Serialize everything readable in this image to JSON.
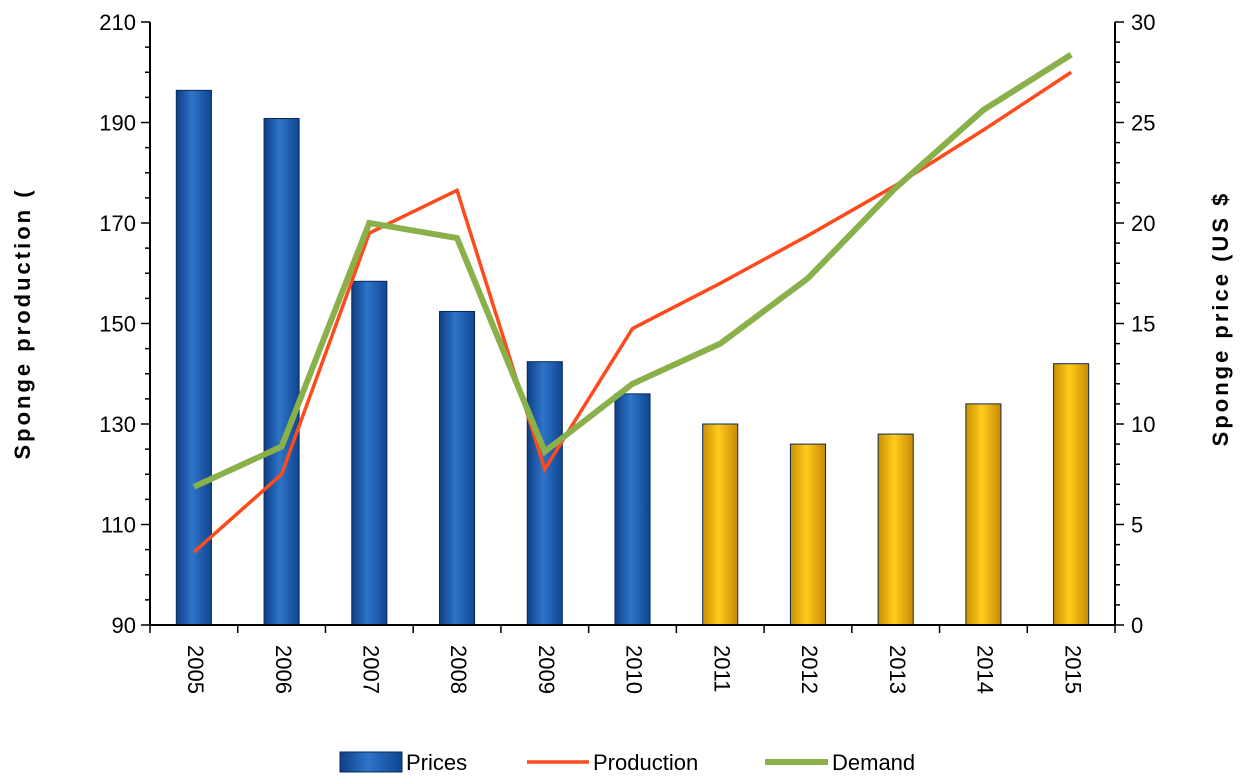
{
  "chart_data": {
    "type": "bar+line",
    "title": "",
    "categories": [
      "2005",
      "2006",
      "2007",
      "2008",
      "2009",
      "2010",
      "2011",
      "2012",
      "2013",
      "2014",
      "2015"
    ],
    "y_left": {
      "label": "Sponge production  (",
      "min": 90,
      "max": 210,
      "ticks": [
        90,
        110,
        130,
        150,
        170,
        190,
        210
      ]
    },
    "y_right": {
      "label": "Sponge price  (US $",
      "min": 0,
      "max": 30,
      "ticks": [
        0,
        5,
        10,
        15,
        20,
        25,
        30
      ]
    },
    "series": [
      {
        "name": "Prices",
        "kind": "bar",
        "axis": "right",
        "values": [
          26.6,
          25.2,
          17.1,
          15.6,
          13.1,
          11.5,
          10.0,
          9.0,
          9.5,
          11.0,
          13.0
        ],
        "colors": [
          "#1f5fae",
          "#1f5fae",
          "#1f5fae",
          "#1f5fae",
          "#1f5fae",
          "#1f5fae",
          "#e8b400",
          "#e8b400",
          "#e8b400",
          "#e8b400",
          "#e8b400"
        ]
      },
      {
        "name": "Production",
        "kind": "line",
        "axis": "left",
        "color": "#ff4a1c",
        "values": [
          104.5,
          120,
          168,
          176.5,
          121,
          149,
          158,
          167.5,
          177.5,
          188.5,
          200
        ]
      },
      {
        "name": "Demand",
        "kind": "line",
        "axis": "left",
        "color": "#8ab04a",
        "values": [
          117.5,
          125.5,
          170,
          167,
          124.5,
          138,
          146,
          159,
          177,
          192.5,
          203.5
        ]
      }
    ],
    "grid": false,
    "legend_position": "bottom"
  }
}
